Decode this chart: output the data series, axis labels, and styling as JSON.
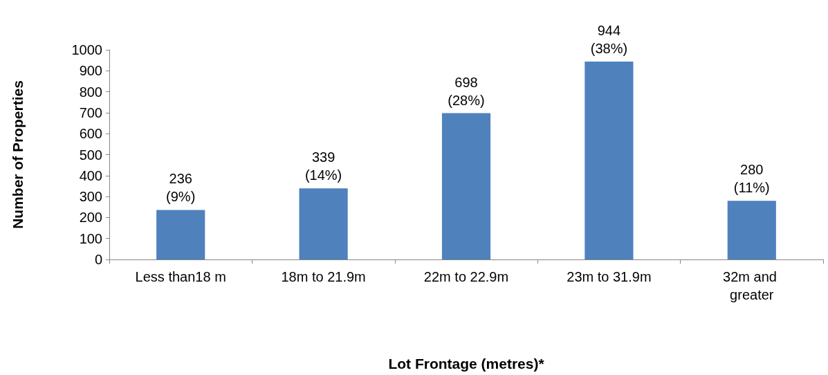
{
  "chart_data": {
    "type": "bar",
    "xlabel": "Lot Frontage (metres)*",
    "ylabel": "Number of Properties",
    "categories": [
      "Less than18 m",
      "18m to 21.9m",
      "22m to 22.9m",
      "23m to 31.9m",
      "32m and greater"
    ],
    "values": [
      236,
      339,
      698,
      944,
      280
    ],
    "color": "#4f81bd",
    "value_labels": [
      "236\n(9%)",
      "339\n(14%)",
      "698\n(28%)",
      "944\n(38%)",
      "280\n(11%)"
    ],
    "ylim": [
      0,
      1000
    ],
    "yticks": [
      0,
      100,
      200,
      300,
      400,
      500,
      600,
      700,
      800,
      900,
      1000
    ],
    "grid": false
  }
}
